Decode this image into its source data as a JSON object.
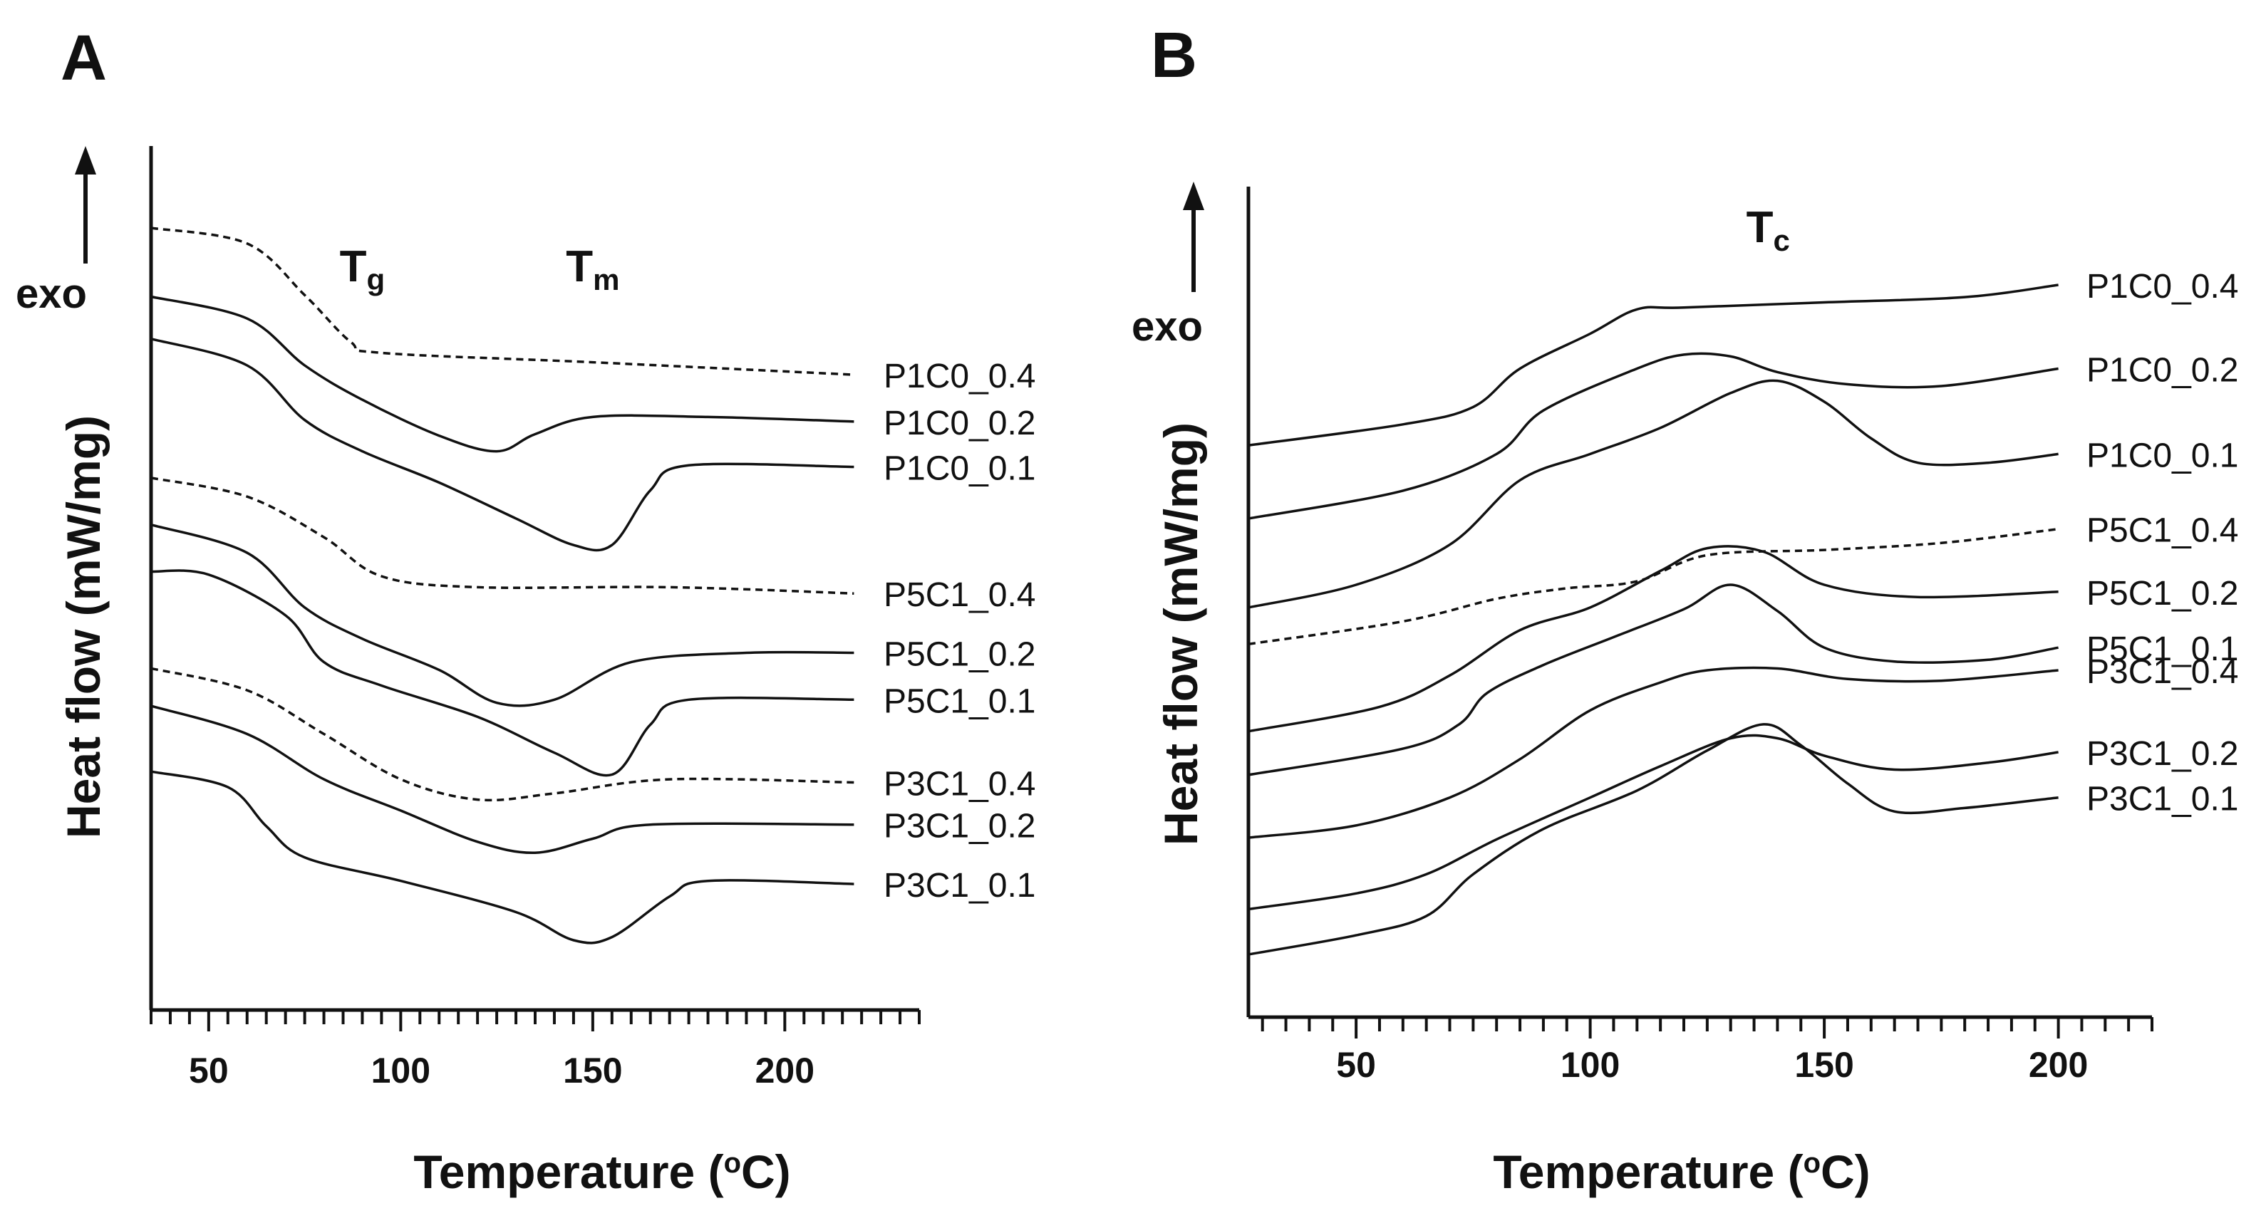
{
  "chart_data": [
    {
      "type": "line",
      "panel": "A",
      "title": "",
      "xlabel": "Temperature (°C)",
      "xlabel_main": "Temperature (",
      "xlabel_sup": "o",
      "xlabel_end": "C)",
      "ylabel": "Heat flow (mW/mg)",
      "exo_label": "exo",
      "xlim": [
        35,
        235
      ],
      "xticks": [
        50,
        100,
        150,
        200
      ],
      "xticks_minor_step": 5,
      "y_units": "arbitrary, curves vertically offset",
      "annotations": [
        {
          "main": "T",
          "sub": "g",
          "x": 90
        },
        {
          "main": "T",
          "sub": "m",
          "x": 150
        }
      ],
      "series": [
        {
          "name": "P1C0_0.4",
          "dashed": true,
          "points": [
            [
              35,
              -1.2
            ],
            [
              60,
              -2.2
            ],
            [
              75,
              -5.5
            ],
            [
              87,
              -8.5
            ],
            [
              95,
              -9.2
            ],
            [
              150,
              -9.8
            ],
            [
              218,
              -10.6
            ]
          ]
        },
        {
          "name": "P1C0_0.2",
          "dashed": false,
          "points": [
            [
              35,
              -5.6
            ],
            [
              60,
              -7.0
            ],
            [
              75,
              -10.0
            ],
            [
              90,
              -12.2
            ],
            [
              110,
              -14.5
            ],
            [
              125,
              -15.5
            ],
            [
              135,
              -14.4
            ],
            [
              150,
              -13.3
            ],
            [
              180,
              -13.3
            ],
            [
              218,
              -13.6
            ]
          ]
        },
        {
          "name": "P1C0_0.1",
          "dashed": false,
          "points": [
            [
              35,
              -8.3
            ],
            [
              60,
              -10.0
            ],
            [
              75,
              -13.5
            ],
            [
              90,
              -15.5
            ],
            [
              110,
              -17.5
            ],
            [
              130,
              -19.8
            ],
            [
              145,
              -21.5
            ],
            [
              155,
              -21.5
            ],
            [
              165,
              -18.0
            ],
            [
              175,
              -16.4
            ],
            [
              218,
              -16.5
            ]
          ]
        },
        {
          "name": "P5C1_0.4",
          "dashed": true,
          "points": [
            [
              35,
              -17.2
            ],
            [
              60,
              -18.4
            ],
            [
              80,
              -21.0
            ],
            [
              95,
              -23.5
            ],
            [
              120,
              -24.2
            ],
            [
              170,
              -24.2
            ],
            [
              218,
              -24.6
            ]
          ]
        },
        {
          "name": "P5C1_0.2",
          "dashed": false,
          "points": [
            [
              35,
              -20.2
            ],
            [
              60,
              -22.0
            ],
            [
              75,
              -25.5
            ],
            [
              90,
              -27.5
            ],
            [
              110,
              -29.5
            ],
            [
              125,
              -31.6
            ],
            [
              140,
              -31.4
            ],
            [
              160,
              -29.0
            ],
            [
              190,
              -28.4
            ],
            [
              218,
              -28.4
            ]
          ]
        },
        {
          "name": "P5C1_0.1",
          "dashed": false,
          "points": [
            [
              35,
              -23.2
            ],
            [
              50,
              -23.4
            ],
            [
              70,
              -26.0
            ],
            [
              80,
              -29.0
            ],
            [
              95,
              -30.5
            ],
            [
              120,
              -32.5
            ],
            [
              140,
              -34.8
            ],
            [
              155,
              -36.2
            ],
            [
              165,
              -33.0
            ],
            [
              175,
              -31.4
            ],
            [
              218,
              -31.4
            ]
          ]
        },
        {
          "name": "P3C1_0.4",
          "dashed": true,
          "points": [
            [
              35,
              -29.4
            ],
            [
              60,
              -30.8
            ],
            [
              80,
              -33.6
            ],
            [
              100,
              -36.5
            ],
            [
              120,
              -37.8
            ],
            [
              140,
              -37.4
            ],
            [
              170,
              -36.5
            ],
            [
              218,
              -36.7
            ]
          ]
        },
        {
          "name": "P3C1_0.2",
          "dashed": false,
          "points": [
            [
              35,
              -31.8
            ],
            [
              60,
              -33.6
            ],
            [
              80,
              -36.5
            ],
            [
              100,
              -38.5
            ],
            [
              120,
              -40.5
            ],
            [
              135,
              -41.2
            ],
            [
              150,
              -40.3
            ],
            [
              165,
              -39.4
            ],
            [
              218,
              -39.4
            ]
          ]
        },
        {
          "name": "P3C1_0.1",
          "dashed": false,
          "points": [
            [
              35,
              -36.0
            ],
            [
              55,
              -37.0
            ],
            [
              65,
              -39.5
            ],
            [
              75,
              -41.5
            ],
            [
              100,
              -43.0
            ],
            [
              130,
              -45.0
            ],
            [
              145,
              -46.8
            ],
            [
              155,
              -46.6
            ],
            [
              170,
              -44.0
            ],
            [
              180,
              -43.0
            ],
            [
              218,
              -43.2
            ]
          ]
        }
      ]
    },
    {
      "type": "line",
      "panel": "B",
      "title": "",
      "xlabel": "Temperature (°C)",
      "xlabel_main": "Temperature (",
      "xlabel_sup": "o",
      "xlabel_end": "C)",
      "ylabel": "Heat flow (mW/mg)",
      "exo_label": "exo",
      "xlim": [
        27,
        220
      ],
      "xticks": [
        50,
        100,
        150,
        200
      ],
      "xticks_minor_step": 5,
      "y_units": "arbitrary, curves vertically offset",
      "annotations": [
        {
          "main": "T",
          "sub": "c",
          "x": 138
        }
      ],
      "series": [
        {
          "name": "P1C0_0.4",
          "dashed": false,
          "points": [
            [
              27,
              -10.0
            ],
            [
              60,
              -8.8
            ],
            [
              75,
              -7.8
            ],
            [
              85,
              -5.6
            ],
            [
              100,
              -3.6
            ],
            [
              110,
              -2.2
            ],
            [
              120,
              -2.1
            ],
            [
              150,
              -1.8
            ],
            [
              180,
              -1.5
            ],
            [
              200,
              -0.8
            ]
          ]
        },
        {
          "name": "P1C0_0.2",
          "dashed": false,
          "points": [
            [
              27,
              -14.2
            ],
            [
              60,
              -12.6
            ],
            [
              80,
              -10.5
            ],
            [
              90,
              -8.0
            ],
            [
              110,
              -5.6
            ],
            [
              120,
              -4.8
            ],
            [
              130,
              -4.9
            ],
            [
              140,
              -5.8
            ],
            [
              155,
              -6.5
            ],
            [
              175,
              -6.6
            ],
            [
              200,
              -5.6
            ]
          ]
        },
        {
          "name": "P1C0_0.1",
          "dashed": false,
          "points": [
            [
              27,
              -19.3
            ],
            [
              50,
              -18.0
            ],
            [
              70,
              -15.7
            ],
            [
              85,
              -12.0
            ],
            [
              100,
              -10.5
            ],
            [
              115,
              -9.0
            ],
            [
              130,
              -7.0
            ],
            [
              140,
              -6.3
            ],
            [
              150,
              -7.5
            ],
            [
              160,
              -9.6
            ],
            [
              170,
              -11.0
            ],
            [
              185,
              -11.0
            ],
            [
              200,
              -10.5
            ]
          ]
        },
        {
          "name": "P5C1_0.4",
          "dashed": true,
          "points": [
            [
              27,
              -21.4
            ],
            [
              60,
              -20.1
            ],
            [
              80,
              -18.8
            ],
            [
              95,
              -18.2
            ],
            [
              110,
              -17.8
            ],
            [
              125,
              -16.3
            ],
            [
              150,
              -16.0
            ],
            [
              175,
              -15.6
            ],
            [
              200,
              -14.8
            ]
          ]
        },
        {
          "name": "P5C1_0.2",
          "dashed": false,
          "points": [
            [
              27,
              -26.4
            ],
            [
              55,
              -25.0
            ],
            [
              70,
              -23.2
            ],
            [
              85,
              -20.6
            ],
            [
              100,
              -19.3
            ],
            [
              115,
              -17.2
            ],
            [
              125,
              -15.9
            ],
            [
              137,
              -16.1
            ],
            [
              150,
              -18.0
            ],
            [
              170,
              -18.7
            ],
            [
              200,
              -18.4
            ]
          ]
        },
        {
          "name": "P5C1_0.1",
          "dashed": false,
          "points": [
            [
              27,
              -28.9
            ],
            [
              60,
              -27.4
            ],
            [
              72,
              -26.0
            ],
            [
              78,
              -24.2
            ],
            [
              90,
              -22.6
            ],
            [
              105,
              -21.0
            ],
            [
              120,
              -19.4
            ],
            [
              130,
              -18.0
            ],
            [
              140,
              -19.5
            ],
            [
              150,
              -21.6
            ],
            [
              165,
              -22.4
            ],
            [
              185,
              -22.3
            ],
            [
              200,
              -21.6
            ]
          ]
        },
        {
          "name": "P3C1_0.4",
          "dashed": false,
          "points": [
            [
              27,
              -32.5
            ],
            [
              50,
              -31.8
            ],
            [
              70,
              -30.2
            ],
            [
              85,
              -28.0
            ],
            [
              100,
              -25.2
            ],
            [
              115,
              -23.6
            ],
            [
              125,
              -22.9
            ],
            [
              140,
              -22.8
            ],
            [
              155,
              -23.4
            ],
            [
              175,
              -23.5
            ],
            [
              200,
              -22.9
            ]
          ]
        },
        {
          "name": "P3C1_0.2",
          "dashed": false,
          "points": [
            [
              27,
              -36.6
            ],
            [
              50,
              -35.7
            ],
            [
              65,
              -34.6
            ],
            [
              80,
              -32.6
            ],
            [
              100,
              -30.2
            ],
            [
              115,
              -28.4
            ],
            [
              130,
              -26.8
            ],
            [
              140,
              -26.8
            ],
            [
              150,
              -27.8
            ],
            [
              165,
              -28.6
            ],
            [
              185,
              -28.2
            ],
            [
              200,
              -27.6
            ]
          ]
        },
        {
          "name": "P3C1_0.1",
          "dashed": false,
          "points": [
            [
              27,
              -39.2
            ],
            [
              50,
              -38.1
            ],
            [
              65,
              -37.0
            ],
            [
              75,
              -34.6
            ],
            [
              90,
              -32.0
            ],
            [
              110,
              -29.8
            ],
            [
              125,
              -27.5
            ],
            [
              137,
              -26.0
            ],
            [
              145,
              -27.2
            ],
            [
              155,
              -29.4
            ],
            [
              165,
              -31.0
            ],
            [
              180,
              -30.8
            ],
            [
              200,
              -30.2
            ]
          ]
        }
      ]
    }
  ]
}
